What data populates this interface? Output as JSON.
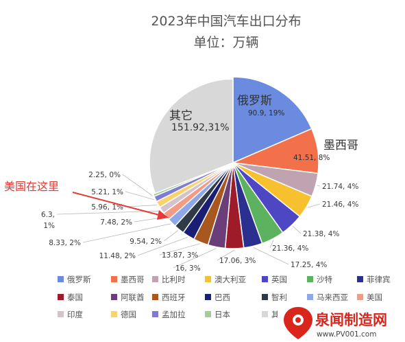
{
  "chart_data": {
    "type": "pie",
    "title": "2023年中国汽车出口分布",
    "subtitle": "单位：万辆",
    "slices": [
      {
        "name": "俄罗斯",
        "value": 90.9,
        "label": "90.9, 19%",
        "color": "#6B8BE0"
      },
      {
        "name": "墨西哥",
        "value": 41.51,
        "label": "41.51, 8%",
        "color": "#F2714A"
      },
      {
        "name": "比利时",
        "value": 21.74,
        "label": "21.74, 4%",
        "color": "#BFA3B0"
      },
      {
        "name": "澳大利亚",
        "value": 21.46,
        "label": "21.46, 4%",
        "color": "#F7C02E"
      },
      {
        "name": "英国",
        "value": 21.38,
        "label": "21.38, 4%",
        "color": "#4D47C4"
      },
      {
        "name": "沙特",
        "value": 21.36,
        "label": "21.36, 4%",
        "color": "#5CB25E"
      },
      {
        "name": "菲律宾",
        "value": 17.25,
        "label": "17.25, 4%",
        "color": "#2B2F8F"
      },
      {
        "name": "泰国",
        "value": 17.06,
        "label": "17.06, 3%",
        "color": "#9E1B2A"
      },
      {
        "name": "阿联酋",
        "value": 16,
        "label": "16, 3%",
        "color": "#6A3E78"
      },
      {
        "name": "西班牙",
        "value": 13.87,
        "label": "13.87, 3%",
        "color": "#A8571E"
      },
      {
        "name": "巴西",
        "value": 11.48,
        "label": "11.48, 2%",
        "color": "#1A1F75"
      },
      {
        "name": "智利",
        "value": 9.54,
        "label": "9.54, 2%",
        "color": "#2F3A46"
      },
      {
        "name": "马来西亚",
        "value": 8.33,
        "label": "8.33, 2%",
        "color": "#8FA7E8"
      },
      {
        "name": "美国",
        "value": 7.48,
        "label": "7.48, 2%",
        "color": "#F59A84"
      },
      {
        "name": "印度",
        "value": 6.3,
        "label": "6.3,\n1%",
        "color": "#D3C3CB"
      },
      {
        "name": "德国",
        "value": 5.96,
        "label": "5.96, 1%",
        "color": "#F8D26C"
      },
      {
        "name": "孟加拉",
        "value": 5.21,
        "label": "5.21, 1%",
        "color": "#7E7AD6"
      },
      {
        "name": "日本",
        "value": 2.25,
        "label": "2.25, 0%",
        "color": "#9FCF95"
      },
      {
        "name": "其它",
        "value": 151.92,
        "label": "151.92,31%",
        "color": "#D8D8D8"
      }
    ],
    "big_labels": {
      "russia": "俄罗斯",
      "mexico": "墨西哥",
      "others": "其它"
    },
    "legend_placement": "bottom",
    "annotation": "美国在这里"
  },
  "watermark": {
    "brand": "泉闻制造网",
    "url": "www.PV001.com"
  }
}
